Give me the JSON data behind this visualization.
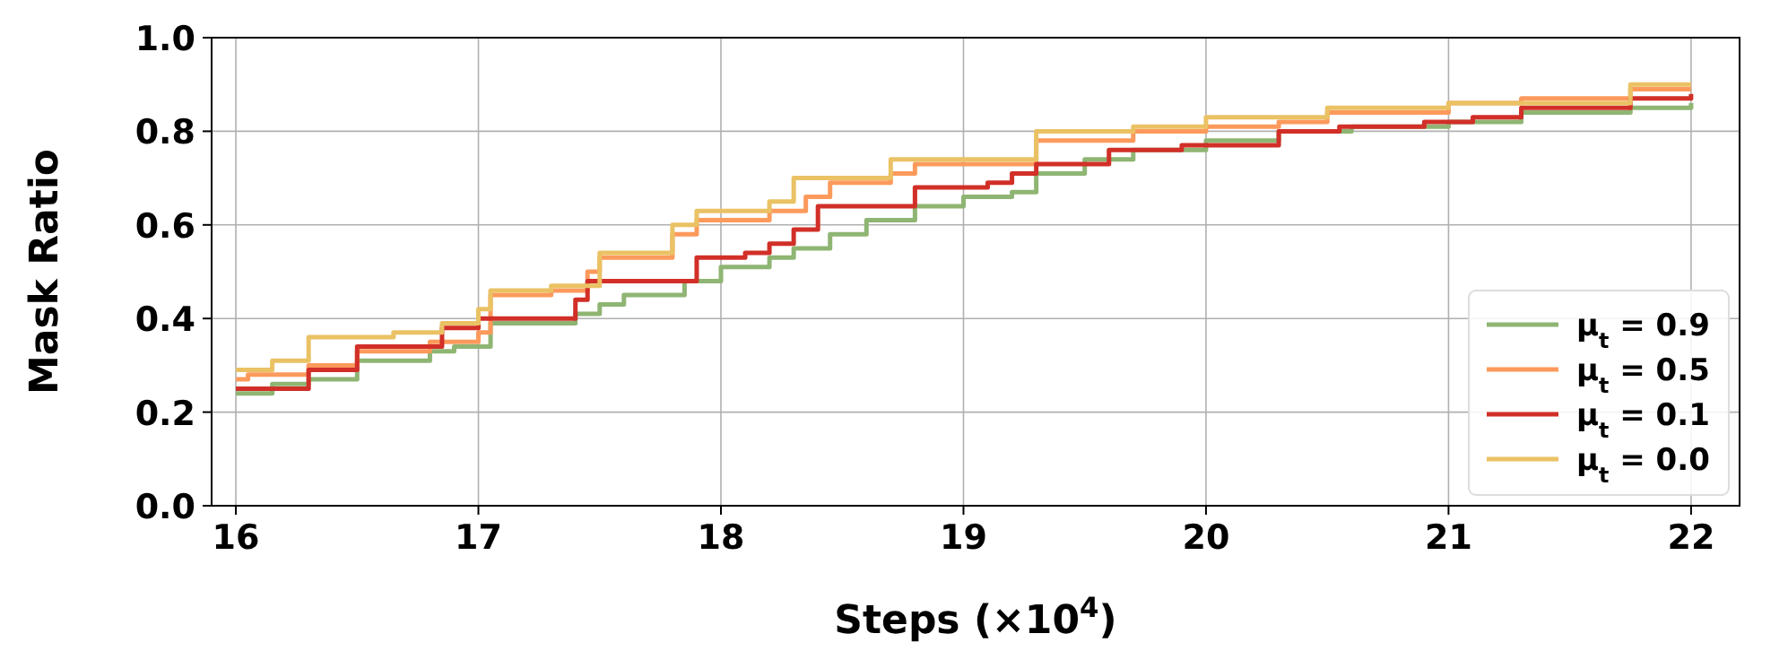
{
  "chart_data": {
    "type": "step",
    "xlabel": "Steps (×10$^{4}$)",
    "ylabel": "Mask Ratio",
    "xlim": [
      15.9,
      22.2
    ],
    "ylim": [
      0,
      1
    ],
    "xticks": [
      16,
      17,
      18,
      19,
      20,
      21,
      22
    ],
    "yticks": [
      {
        "value": 0,
        "label": "0.0"
      },
      {
        "value": 0.2,
        "label": "0.2"
      },
      {
        "value": 0.4,
        "label": "0.4"
      },
      {
        "value": 0.6,
        "label": "0.6"
      },
      {
        "value": 0.8,
        "label": "0.8"
      },
      {
        "value": 1,
        "label": "1.0"
      }
    ],
    "grid": true,
    "legend": "bottom right",
    "line_style": "solid",
    "marker": "none",
    "series": [
      {
        "name": "μ$_{t}$ = 0.9",
        "color": "#8fb573",
        "x": [
          16,
          16.15,
          16.3,
          16.5,
          16.8,
          16.9,
          17.05,
          17.4,
          17.5,
          17.6,
          17.85,
          18,
          18.2,
          18.3,
          18.45,
          18.6,
          18.8,
          19,
          19.2,
          19.3,
          19.5,
          19.7,
          20,
          20.3,
          20.6,
          21,
          21.3,
          21.75,
          22
        ],
        "values": [
          0.24,
          0.26,
          0.27,
          0.31,
          0.33,
          0.34,
          0.39,
          0.41,
          0.43,
          0.45,
          0.48,
          0.51,
          0.53,
          0.55,
          0.58,
          0.61,
          0.64,
          0.66,
          0.67,
          0.71,
          0.74,
          0.76,
          0.78,
          0.8,
          0.81,
          0.82,
          0.84,
          0.85,
          0.86
        ]
      },
      {
        "name": "μ$_{t}$ = 0.5",
        "color": "#fc9a5c",
        "x": [
          16,
          16.05,
          16.3,
          16.5,
          16.8,
          17,
          17.05,
          17.3,
          17.45,
          17.5,
          17.8,
          17.9,
          18.2,
          18.35,
          18.45,
          18.7,
          18.8,
          19.3,
          19.7,
          20,
          20.3,
          20.5,
          21,
          21.3,
          21.75,
          22
        ],
        "values": [
          0.27,
          0.28,
          0.3,
          0.33,
          0.35,
          0.37,
          0.45,
          0.46,
          0.5,
          0.53,
          0.58,
          0.61,
          0.63,
          0.66,
          0.69,
          0.71,
          0.73,
          0.78,
          0.8,
          0.81,
          0.82,
          0.84,
          0.86,
          0.87,
          0.89,
          0.89
        ]
      },
      {
        "name": "μ$_{t}$ = 0.1",
        "color": "#d12f27",
        "x": [
          16,
          16.3,
          16.5,
          16.85,
          17,
          17.4,
          17.45,
          17.9,
          18.1,
          18.2,
          18.3,
          18.4,
          18.8,
          19.1,
          19.2,
          19.3,
          19.6,
          19.9,
          20.3,
          20.55,
          20.9,
          21.1,
          21.3,
          21.75,
          22
        ],
        "values": [
          0.25,
          0.29,
          0.34,
          0.38,
          0.4,
          0.44,
          0.48,
          0.53,
          0.54,
          0.56,
          0.59,
          0.64,
          0.68,
          0.69,
          0.71,
          0.73,
          0.76,
          0.77,
          0.8,
          0.81,
          0.82,
          0.83,
          0.85,
          0.87,
          0.88
        ]
      },
      {
        "name": "μ$_{t}$ = 0.0",
        "color": "#eac264",
        "x": [
          16,
          16.15,
          16.3,
          16.65,
          16.85,
          17,
          17.05,
          17.3,
          17.5,
          17.8,
          17.9,
          18.2,
          18.3,
          18.7,
          19.3,
          19.7,
          20,
          20.5,
          21,
          21.75,
          22
        ],
        "values": [
          0.29,
          0.31,
          0.36,
          0.37,
          0.39,
          0.42,
          0.46,
          0.47,
          0.54,
          0.6,
          0.63,
          0.65,
          0.7,
          0.74,
          0.8,
          0.81,
          0.83,
          0.85,
          0.86,
          0.9,
          0.9
        ]
      }
    ]
  }
}
